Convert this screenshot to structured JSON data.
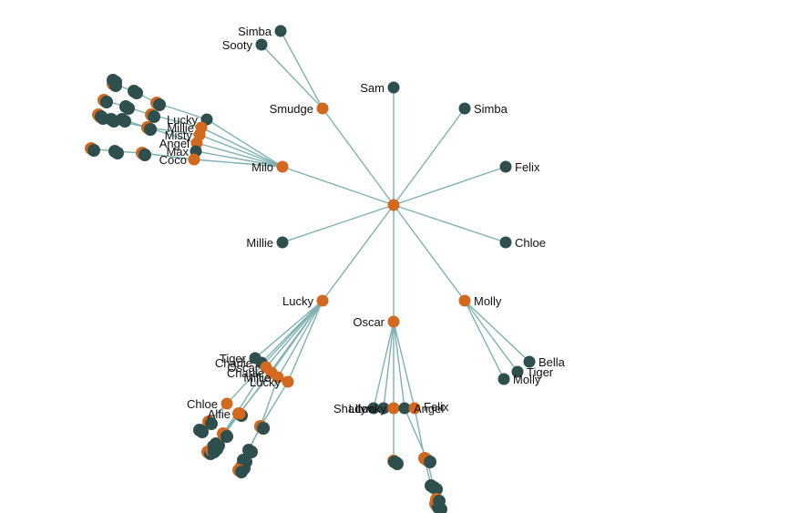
{
  "diagram": {
    "type": "radial-tree",
    "colors": {
      "link": "#7fb1b2",
      "leaf": "#2f4f4f",
      "branch": "#d2691e"
    },
    "root": {
      "id": "root",
      "label": ""
    },
    "nodes": [
      {
        "id": "sam",
        "label": "Sam",
        "parent": "root",
        "kind": "leaf"
      },
      {
        "id": "simba1",
        "label": "Simba",
        "parent": "root",
        "kind": "leaf"
      },
      {
        "id": "felix1",
        "label": "Felix",
        "parent": "root",
        "kind": "leaf"
      },
      {
        "id": "chloe1",
        "label": "Chloe",
        "parent": "root",
        "kind": "leaf"
      },
      {
        "id": "molly",
        "label": "Molly",
        "parent": "root",
        "kind": "branch"
      },
      {
        "id": "oscar",
        "label": "Oscar",
        "parent": "root",
        "kind": "branch"
      },
      {
        "id": "lucky",
        "label": "Lucky",
        "parent": "root",
        "kind": "branch"
      },
      {
        "id": "millie1",
        "label": "Millie",
        "parent": "root",
        "kind": "leaf"
      },
      {
        "id": "milo",
        "label": "Milo",
        "parent": "root",
        "kind": "branch"
      },
      {
        "id": "smudge",
        "label": "Smudge",
        "parent": "root",
        "kind": "branch"
      },
      {
        "id": "sooty",
        "label": "Sooty",
        "parent": "smudge",
        "kind": "leaf"
      },
      {
        "id": "simba2",
        "label": "Simba",
        "parent": "smudge",
        "kind": "leaf"
      },
      {
        "id": "bella",
        "label": "Bella",
        "parent": "molly",
        "kind": "leaf"
      },
      {
        "id": "tiger1",
        "label": "Tiger",
        "parent": "molly",
        "kind": "leaf"
      },
      {
        "id": "molly2",
        "label": "Molly",
        "parent": "molly",
        "kind": "leaf"
      },
      {
        "id": "milo-lucky",
        "label": "Lucky",
        "parent": "milo",
        "kind": "leaf"
      },
      {
        "id": "milo-millie",
        "label": "Millie",
        "parent": "milo",
        "kind": "branch"
      },
      {
        "id": "milo-misty",
        "label": "Misty",
        "parent": "milo",
        "kind": "branch"
      },
      {
        "id": "milo-angel",
        "label": "Angel",
        "parent": "milo",
        "kind": "branch"
      },
      {
        "id": "milo-max",
        "label": "Max",
        "parent": "milo",
        "kind": "leaf"
      },
      {
        "id": "milo-coco",
        "label": "Coco",
        "parent": "milo",
        "kind": "branch"
      },
      {
        "id": "lucky-tiger",
        "label": "Tiger",
        "parent": "lucky",
        "kind": "leaf"
      },
      {
        "id": "lucky-charlie",
        "label": "Charlie",
        "parent": "lucky",
        "kind": "leaf"
      },
      {
        "id": "lucky-oscar",
        "label": "Oscar",
        "parent": "lucky",
        "kind": "branch"
      },
      {
        "id": "lucky-charlie2",
        "label": "Charlie",
        "parent": "lucky",
        "kind": "branch"
      },
      {
        "id": "lucky-millie",
        "label": "Millie",
        "parent": "lucky",
        "kind": "branch"
      },
      {
        "id": "lucky-lucky",
        "label": "Lucky",
        "parent": "lucky",
        "kind": "branch"
      },
      {
        "id": "lucky-chloe",
        "label": "Chloe",
        "parent": "lucky",
        "kind": "branch"
      },
      {
        "id": "lucky-alfie",
        "label": "Alfie",
        "parent": "lucky",
        "kind": "branch"
      },
      {
        "id": "oscar-lily",
        "label": "Lily",
        "parent": "oscar",
        "kind": "leaf"
      },
      {
        "id": "oscar-shadow",
        "label": "Shadow",
        "parent": "oscar",
        "kind": "leaf"
      },
      {
        "id": "oscar-lucky",
        "label": "Lucky",
        "parent": "oscar",
        "kind": "branch"
      },
      {
        "id": "oscar-angel",
        "label": "Angel",
        "parent": "oscar",
        "kind": "leaf"
      },
      {
        "id": "oscar-felix",
        "label": "Felix",
        "parent": "oscar",
        "kind": "branch"
      }
    ]
  }
}
